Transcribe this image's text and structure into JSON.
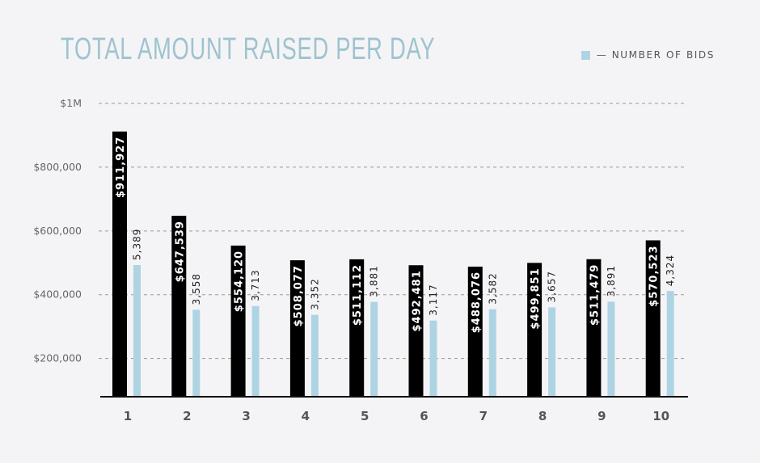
{
  "chart_data": {
    "type": "bar",
    "title": "TOTAL AMOUNT RAISED PER DAY",
    "categories": [
      "1",
      "2",
      "3",
      "4",
      "5",
      "6",
      "7",
      "8",
      "9",
      "10"
    ],
    "series": [
      {
        "name": "",
        "color": "#000000",
        "values": [
          911927,
          647539,
          554120,
          508077,
          511112,
          492481,
          488076,
          499851,
          511479,
          570523
        ],
        "labels": [
          "$911,927",
          "$647,539",
          "$554,120",
          "$508,077",
          "$511,112",
          "$492,481",
          "$488,076",
          "$499,851",
          "$511,479",
          "$570,523"
        ]
      },
      {
        "name": "— NUMBER OF BIDS",
        "color": "#aed4e3",
        "values": [
          5389,
          3558,
          3713,
          3352,
          3881,
          3117,
          3582,
          3657,
          3891,
          4324
        ],
        "labels": [
          "5,389",
          "3,558",
          "3,713",
          "3,352",
          "3,881",
          "3,117",
          "3,582",
          "3,657",
          "3,891",
          "4,324"
        ]
      }
    ],
    "yticks": [
      {
        "value": 200000,
        "label": "$200,000"
      },
      {
        "value": 400000,
        "label": "$400,000"
      },
      {
        "value": 600000,
        "label": "$600,000"
      },
      {
        "value": 800000,
        "label": "$800,000"
      },
      {
        "value": 1000000,
        "label": "$1M"
      }
    ],
    "ylim": [
      80000,
      1000000
    ],
    "grid": true,
    "legend_position": "top-right"
  }
}
